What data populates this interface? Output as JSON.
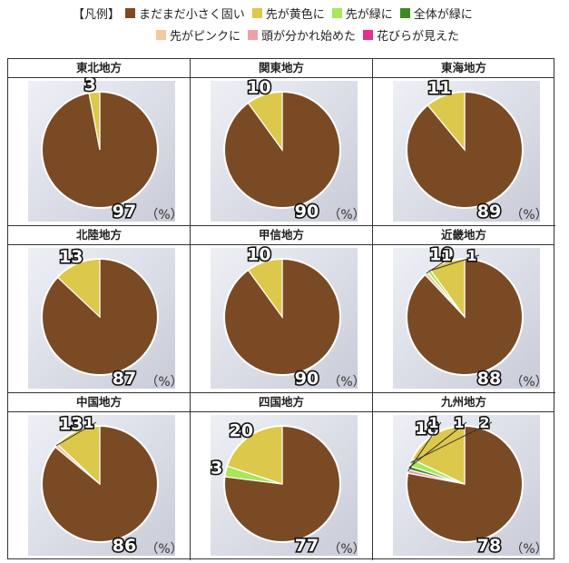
{
  "legend": {
    "title": "【凡例】",
    "items": [
      {
        "label": "まだまだ小さく固い",
        "color": "#7a4a24"
      },
      {
        "label": "先が黄色に",
        "color": "#dcc84a"
      },
      {
        "label": "先が緑に",
        "color": "#a8e65a"
      },
      {
        "label": "全体が緑に",
        "color": "#3e8a22"
      },
      {
        "label": "先がピンクに",
        "color": "#f5c8a0"
      },
      {
        "label": "頭が分かれ始めた",
        "color": "#f0a0a8"
      },
      {
        "label": "花びらが見えた",
        "color": "#e0308a"
      }
    ]
  },
  "unit": "（%）",
  "chart_data": [
    {
      "type": "pie",
      "title": "東北地方",
      "slices": [
        {
          "category": "まだまだ小さく固い",
          "value": 97
        },
        {
          "category": "先が黄色に",
          "value": 3
        }
      ]
    },
    {
      "type": "pie",
      "title": "関東地方",
      "slices": [
        {
          "category": "まだまだ小さく固い",
          "value": 90
        },
        {
          "category": "先が黄色に",
          "value": 10
        }
      ]
    },
    {
      "type": "pie",
      "title": "東海地方",
      "slices": [
        {
          "category": "まだまだ小さく固い",
          "value": 89
        },
        {
          "category": "先が黄色に",
          "value": 11
        }
      ]
    },
    {
      "type": "pie",
      "title": "北陸地方",
      "slices": [
        {
          "category": "まだまだ小さく固い",
          "value": 87
        },
        {
          "category": "先が黄色に",
          "value": 13
        }
      ]
    },
    {
      "type": "pie",
      "title": "甲信地方",
      "slices": [
        {
          "category": "まだまだ小さく固い",
          "value": 90
        },
        {
          "category": "先が黄色に",
          "value": 10
        }
      ]
    },
    {
      "type": "pie",
      "title": "近畿地方",
      "slices": [
        {
          "category": "まだまだ小さく固い",
          "value": 88
        },
        {
          "category": "先が黄色に",
          "value": 10
        },
        {
          "category": "先が緑に",
          "value": 1
        },
        {
          "category": "先がピンクに",
          "value": 1
        }
      ]
    },
    {
      "type": "pie",
      "title": "中国地方",
      "slices": [
        {
          "category": "まだまだ小さく固い",
          "value": 86
        },
        {
          "category": "先が黄色に",
          "value": 13
        },
        {
          "category": "先がピンクに",
          "value": 1
        }
      ]
    },
    {
      "type": "pie",
      "title": "四国地方",
      "slices": [
        {
          "category": "まだまだ小さく固い",
          "value": 77
        },
        {
          "category": "先が黄色に",
          "value": 20
        },
        {
          "category": "先が緑に",
          "value": 3
        }
      ]
    },
    {
      "type": "pie",
      "title": "九州地方",
      "slices": [
        {
          "category": "まだまだ小さく固い",
          "value": 78
        },
        {
          "category": "先が黄色に",
          "value": 18
        },
        {
          "category": "先が緑に",
          "value": 2
        },
        {
          "category": "全体が緑に",
          "value": 1
        },
        {
          "category": "頭が分かれ始めた",
          "value": 1
        }
      ]
    }
  ]
}
